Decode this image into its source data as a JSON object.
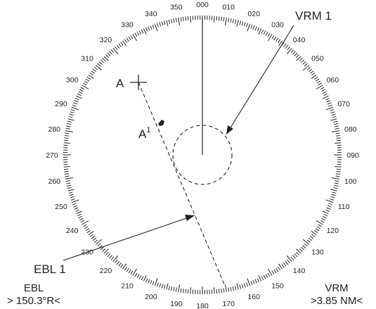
{
  "scale": {
    "bearing_labels": [
      "000",
      "010",
      "020",
      "030",
      "040",
      "050",
      "060",
      "070",
      "080",
      "090",
      "100",
      "110",
      "120",
      "130",
      "140",
      "150",
      "160",
      "170",
      "180",
      "190",
      "200",
      "210",
      "220",
      "230",
      "240",
      "250",
      "260",
      "270",
      "280",
      "290",
      "300",
      "310",
      "320",
      "330",
      "340",
      "350"
    ]
  },
  "markers": {
    "target_a": "A",
    "target_a1_letter": "A",
    "target_a1_sup": "1"
  },
  "callouts": {
    "vrm": "VRM 1",
    "ebl": "EBL 1"
  },
  "readouts": {
    "ebl_title": "EBL",
    "ebl_value": "> 150.3°R<",
    "vrm_title": "VRM",
    "vrm_value": ">3.85 NM<"
  },
  "settings": {
    "ebl_bearing_deg": 150.3
  },
  "colors": {
    "ink": "#222222",
    "background": "#ffffff"
  }
}
